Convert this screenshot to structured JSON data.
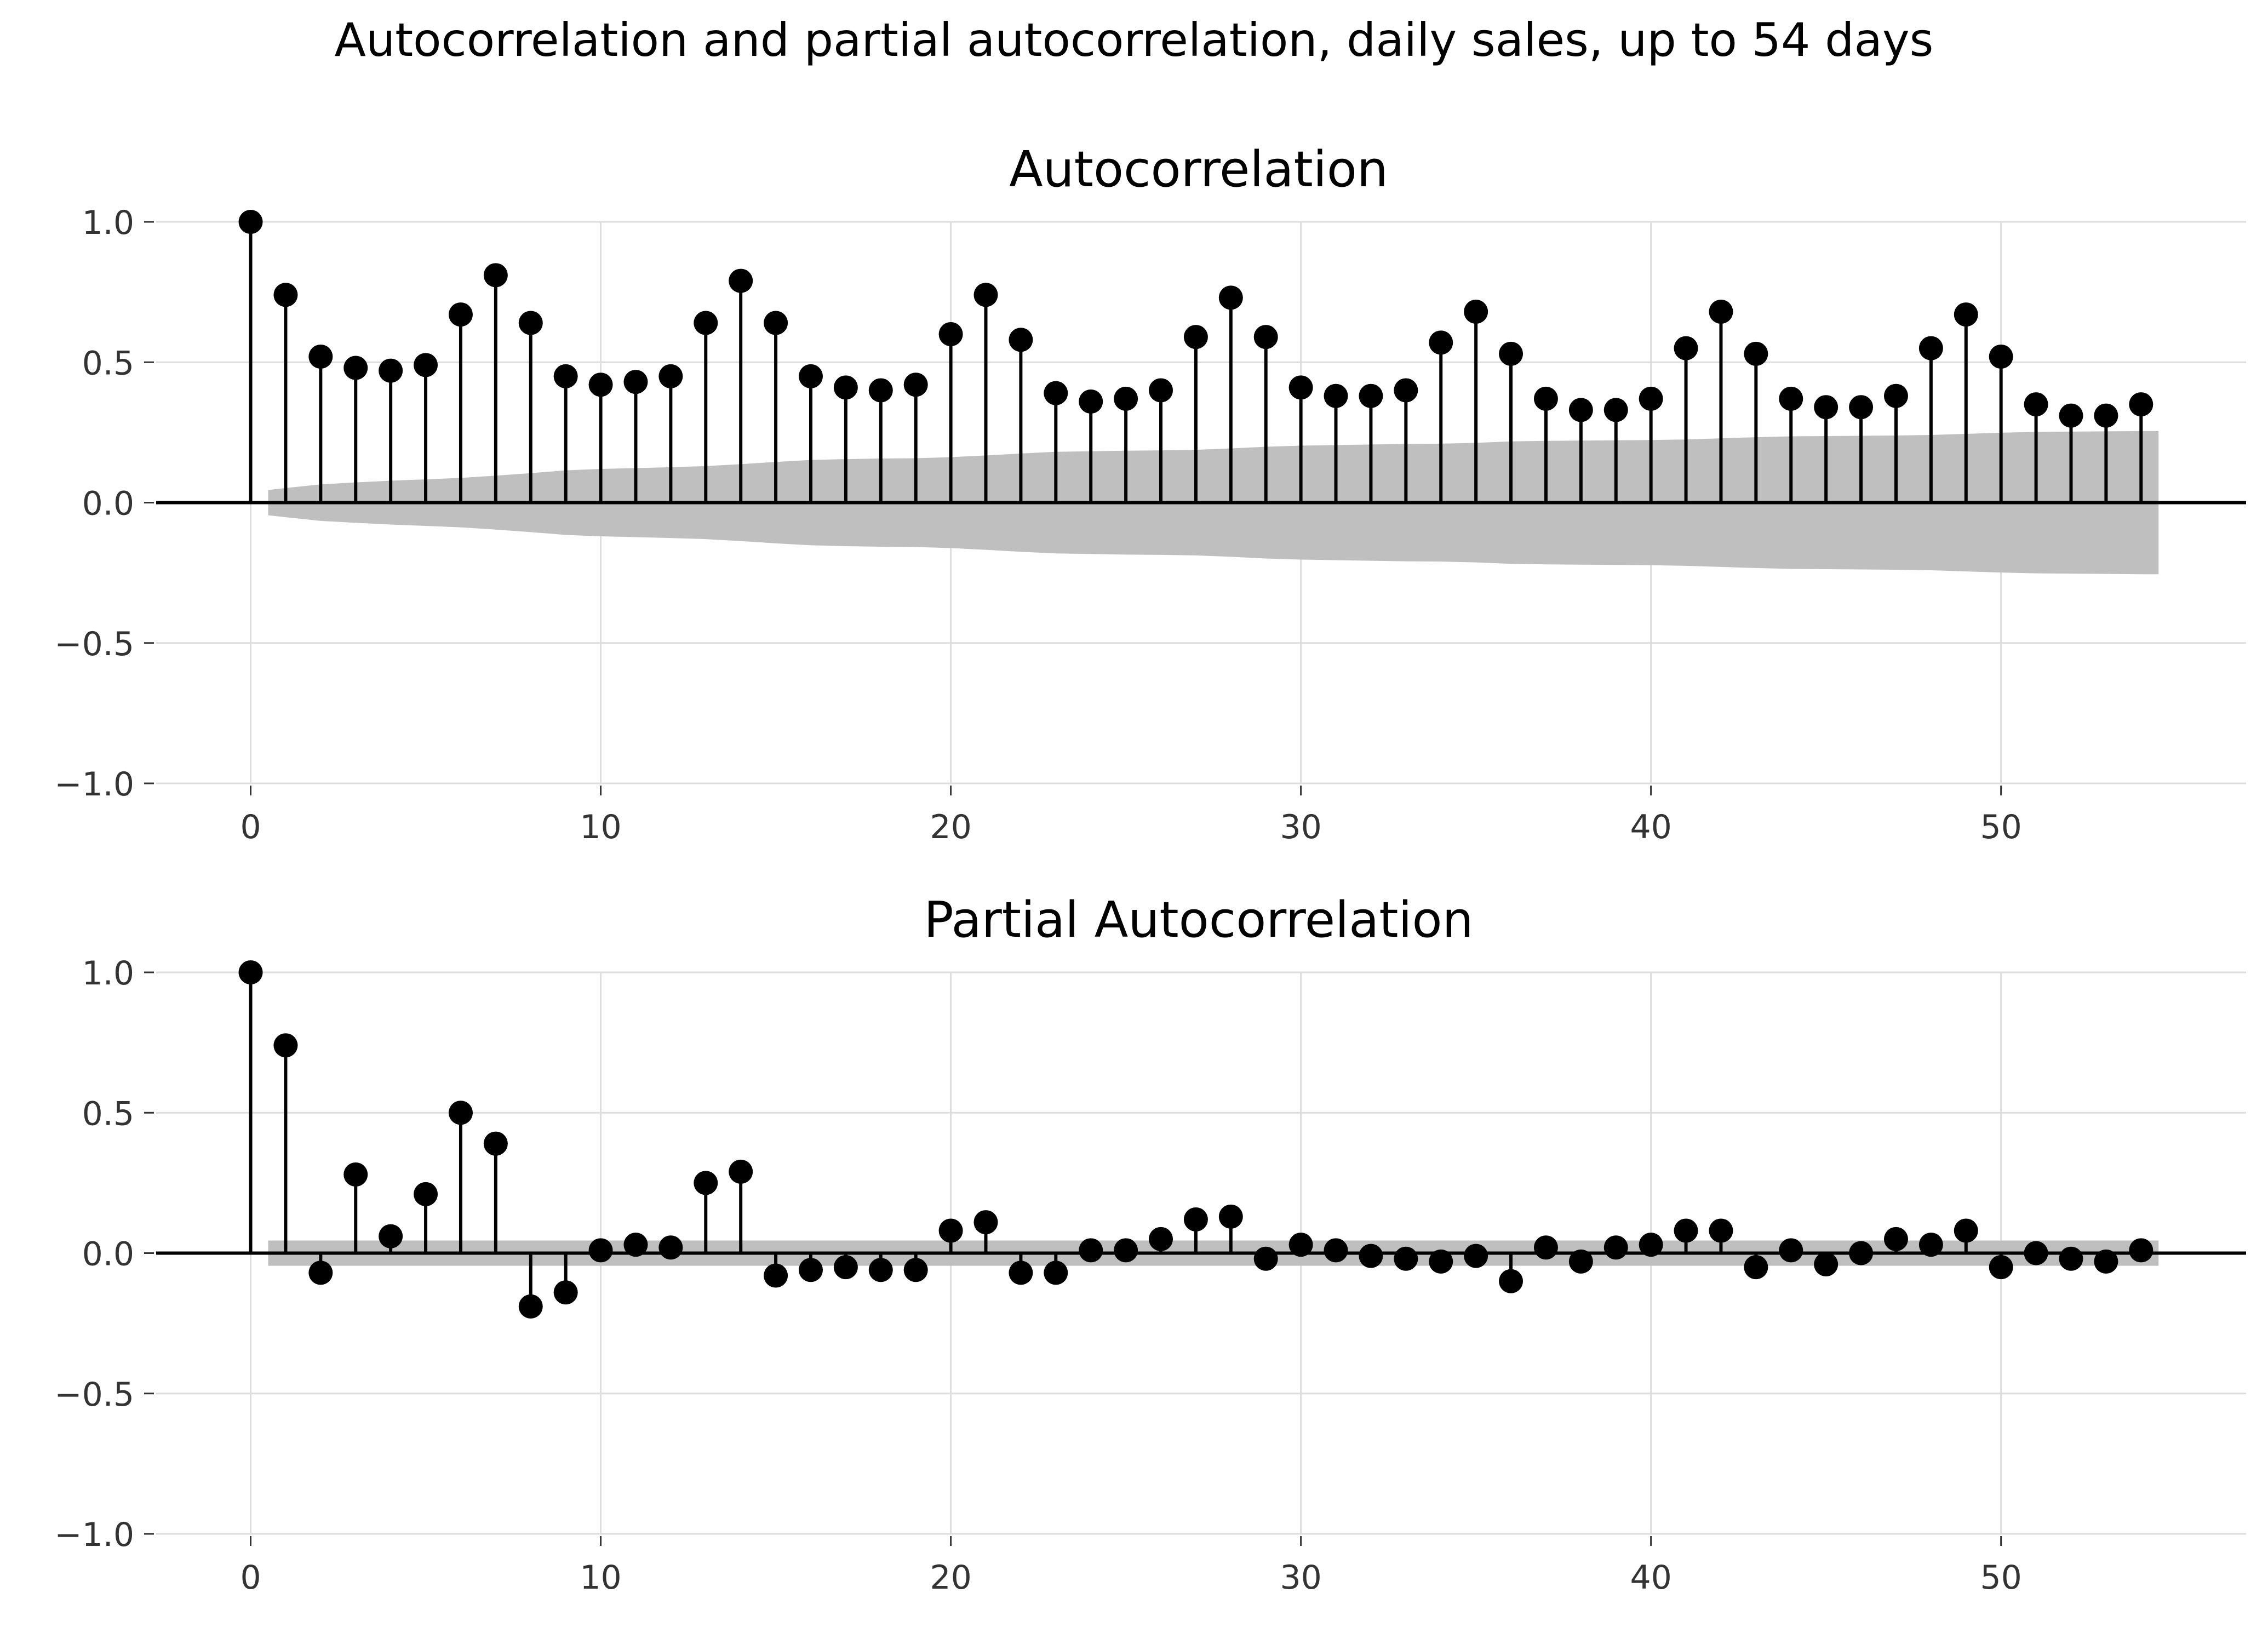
{
  "figure": {
    "suptitle": "Autocorrelation and partial autocorrelation, daily sales, up to 54 days"
  },
  "style": {
    "stem_color": "#000000",
    "marker_color": "#000000",
    "band_color": "#bfbfbf",
    "grid_color": "#dddddd",
    "zero_line_color": "#000000",
    "tick_label_color": "#333333"
  },
  "chart_data": [
    {
      "type": "stem",
      "title": "Autocorrelation",
      "xlabel": "",
      "ylabel": "",
      "xlim": [
        -2.7,
        57
      ],
      "ylim": [
        -1.0,
        1.0
      ],
      "xticks": [
        0,
        10,
        20,
        30,
        40,
        50
      ],
      "xtick_labels": [
        "0",
        "10",
        "20",
        "30",
        "40",
        "50"
      ],
      "yticks": [
        1.0,
        0.5,
        0.0,
        -0.5,
        -1.0
      ],
      "ytick_labels": [
        "1.0",
        "0.5",
        "0.0",
        "−0.5",
        "−1.0"
      ],
      "grid": true,
      "lags": [
        0,
        1,
        2,
        3,
        4,
        5,
        6,
        7,
        8,
        9,
        10,
        11,
        12,
        13,
        14,
        15,
        16,
        17,
        18,
        19,
        20,
        21,
        22,
        23,
        24,
        25,
        26,
        27,
        28,
        29,
        30,
        31,
        32,
        33,
        34,
        35,
        36,
        37,
        38,
        39,
        40,
        41,
        42,
        43,
        44,
        45,
        46,
        47,
        48,
        49,
        50,
        51,
        52,
        53,
        54
      ],
      "values": [
        1.0,
        0.74,
        0.52,
        0.48,
        0.47,
        0.49,
        0.67,
        0.81,
        0.64,
        0.45,
        0.42,
        0.43,
        0.45,
        0.64,
        0.79,
        0.64,
        0.45,
        0.41,
        0.4,
        0.42,
        0.6,
        0.74,
        0.58,
        0.39,
        0.36,
        0.37,
        0.4,
        0.59,
        0.73,
        0.59,
        0.41,
        0.38,
        0.38,
        0.4,
        0.57,
        0.68,
        0.53,
        0.37,
        0.33,
        0.33,
        0.37,
        0.55,
        0.68,
        0.53,
        0.37,
        0.34,
        0.34,
        0.38,
        0.55,
        0.67,
        0.52,
        0.35,
        0.31,
        0.31,
        0.35
      ],
      "confint": {
        "lags": [
          0.5,
          1,
          2,
          3,
          4,
          5,
          6,
          7,
          8,
          9,
          10,
          11,
          12,
          13,
          14,
          15,
          16,
          17,
          18,
          19,
          20,
          21,
          22,
          23,
          24,
          25,
          26,
          27,
          28,
          29,
          30,
          31,
          32,
          33,
          34,
          35,
          36,
          37,
          38,
          39,
          40,
          41,
          42,
          43,
          44,
          45,
          46,
          47,
          48,
          49,
          50,
          51,
          52,
          53,
          54,
          54.5
        ],
        "upper": [
          0.045,
          0.052,
          0.065,
          0.072,
          0.078,
          0.083,
          0.088,
          0.096,
          0.105,
          0.115,
          0.12,
          0.123,
          0.126,
          0.13,
          0.137,
          0.145,
          0.152,
          0.155,
          0.157,
          0.158,
          0.162,
          0.168,
          0.175,
          0.181,
          0.183,
          0.185,
          0.186,
          0.188,
          0.193,
          0.199,
          0.203,
          0.205,
          0.207,
          0.209,
          0.21,
          0.213,
          0.218,
          0.22,
          0.221,
          0.222,
          0.223,
          0.225,
          0.229,
          0.233,
          0.236,
          0.237,
          0.238,
          0.239,
          0.241,
          0.245,
          0.249,
          0.252,
          0.253,
          0.254,
          0.255,
          0.255
        ]
      }
    },
    {
      "type": "stem",
      "title": "Partial Autocorrelation",
      "xlabel": "",
      "ylabel": "",
      "xlim": [
        -2.7,
        57
      ],
      "ylim": [
        -1.0,
        1.0
      ],
      "xticks": [
        0,
        10,
        20,
        30,
        40,
        50
      ],
      "xtick_labels": [
        "0",
        "10",
        "20",
        "30",
        "40",
        "50"
      ],
      "yticks": [
        1.0,
        0.5,
        0.0,
        -0.5,
        -1.0
      ],
      "ytick_labels": [
        "1.0",
        "0.5",
        "0.0",
        "−0.5",
        "−1.0"
      ],
      "grid": true,
      "lags": [
        0,
        1,
        2,
        3,
        4,
        5,
        6,
        7,
        8,
        9,
        10,
        11,
        12,
        13,
        14,
        15,
        16,
        17,
        18,
        19,
        20,
        21,
        22,
        23,
        24,
        25,
        26,
        27,
        28,
        29,
        30,
        31,
        32,
        33,
        34,
        35,
        36,
        37,
        38,
        39,
        40,
        41,
        42,
        43,
        44,
        45,
        46,
        47,
        48,
        49,
        50,
        51,
        52,
        53,
        54
      ],
      "values": [
        1.0,
        0.74,
        -0.07,
        0.28,
        0.06,
        0.21,
        0.5,
        0.39,
        -0.19,
        -0.14,
        0.01,
        0.03,
        0.02,
        0.25,
        0.29,
        -0.08,
        -0.06,
        -0.05,
        -0.06,
        -0.06,
        0.08,
        0.11,
        -0.07,
        -0.07,
        0.01,
        0.01,
        0.05,
        0.12,
        0.13,
        -0.02,
        0.03,
        0.01,
        -0.01,
        -0.02,
        -0.03,
        -0.01,
        -0.1,
        0.02,
        -0.03,
        0.02,
        0.03,
        0.08,
        0.08,
        -0.05,
        0.01,
        -0.04,
        0.0,
        0.05,
        0.03,
        0.08,
        -0.05,
        0.0,
        -0.02,
        -0.03,
        0.01
      ],
      "confint": {
        "lags": [
          0.5,
          54.5
        ],
        "upper": [
          0.045,
          0.045
        ]
      }
    }
  ]
}
